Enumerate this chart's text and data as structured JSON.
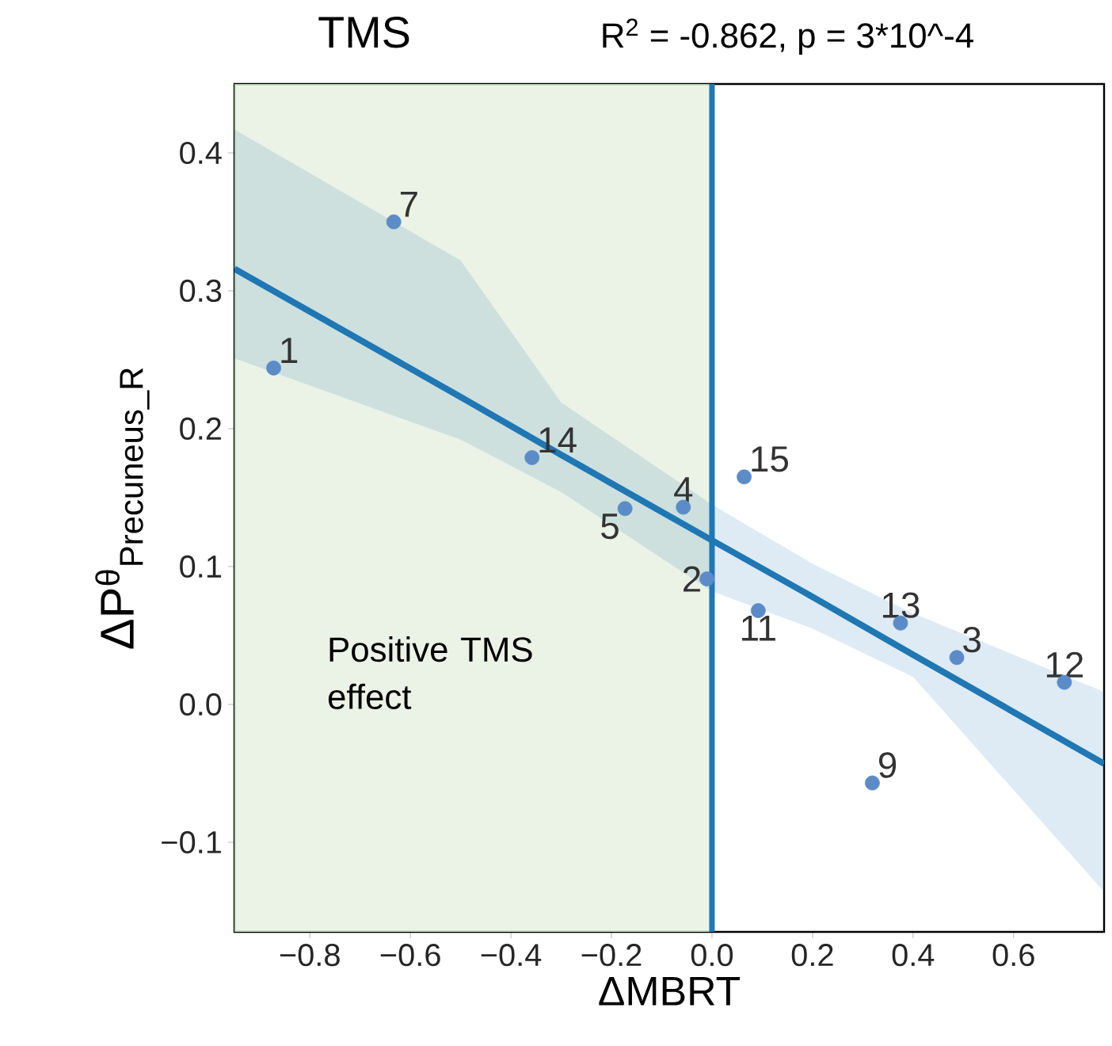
{
  "chart_data": {
    "type": "scatter",
    "title": "TMS",
    "subtitle": "R$^{2}$ = -0.862, p = 3*10^-4",
    "xlabel": "ΔMBRT",
    "ylabel": "ΔP$^{θ}$$_{Precuneus_R}$",
    "xlim": [
      -0.95,
      0.78
    ],
    "ylim": [
      -0.165,
      0.45
    ],
    "xticks": [
      {
        "value": -0.8,
        "label": "−0.8"
      },
      {
        "value": -0.6,
        "label": "−0.6"
      },
      {
        "value": -0.4,
        "label": "−0.4"
      },
      {
        "value": -0.2,
        "label": "−0.2"
      },
      {
        "value": 0,
        "label": "0.0"
      },
      0.2,
      0.4,
      0.6
    ],
    "yticks": [
      {
        "value": -0.1,
        "label": "−0.1"
      },
      {
        "value": 0,
        "label": "0.0"
      },
      0.1,
      0.2,
      0.3,
      0.4
    ],
    "series": [
      {
        "type": "line",
        "color": "#1f77b4",
        "x": [
          -0.95,
          -0.5,
          -0.3,
          0,
          0.2,
          0.4,
          0.78
        ],
        "values": [
          0.316,
          0.223,
          0.181,
          0.119,
          0.078,
          0.036,
          -0.043
        ],
        "lower": [
          0.251,
          0.192,
          0.154,
          0.082,
          0.055,
          0.02,
          -0.136
        ],
        "upper": [
          0.417,
          0.322,
          0.219,
          0.145,
          0.102,
          0.066,
          0.009
        ],
        "marker": "none"
      },
      {
        "type": "scatter",
        "color": "#5b8cc8",
        "marker": "circle",
        "x": [
          -0.872,
          -0.633,
          -0.358,
          -0.173,
          -0.057,
          -0.01,
          0.064,
          0.092,
          0.375,
          0.487,
          0.701,
          0.319
        ],
        "values": [
          0.244,
          0.35,
          0.179,
          0.142,
          0.143,
          0.091,
          0.165,
          0.068,
          0.059,
          0.034,
          0.016,
          -0.057
        ]
      }
    ],
    "bands": [
      {
        "axis": "x",
        "from": -0.95,
        "to": 0,
        "label": "Positive  TMS effect",
        "color": "#ebf3e6"
      }
    ],
    "ref_lines": [
      {
        "axis": "x",
        "value": 0,
        "color": "#1f77b4"
      }
    ],
    "annotations": [
      {
        "text": "1",
        "x": -0.872,
        "y": 0.244
      },
      {
        "text": "7",
        "x": -0.633,
        "y": 0.35
      },
      {
        "text": "14",
        "x": -0.358,
        "y": 0.179
      },
      {
        "text": "5",
        "x": -0.173,
        "y": 0.142
      },
      {
        "text": "4",
        "x": -0.057,
        "y": 0.143
      },
      {
        "text": "2",
        "x": -0.01,
        "y": 0.091
      },
      {
        "text": "15",
        "x": 0.064,
        "y": 0.165
      },
      {
        "text": "11",
        "x": 0.092,
        "y": 0.068
      },
      {
        "text": "13",
        "x": 0.375,
        "y": 0.059
      },
      {
        "text": "3",
        "x": 0.487,
        "y": 0.034
      },
      {
        "text": "12",
        "x": 0.701,
        "y": 0.016
      },
      {
        "text": "9",
        "x": 0.319,
        "y": -0.057
      }
    ]
  }
}
